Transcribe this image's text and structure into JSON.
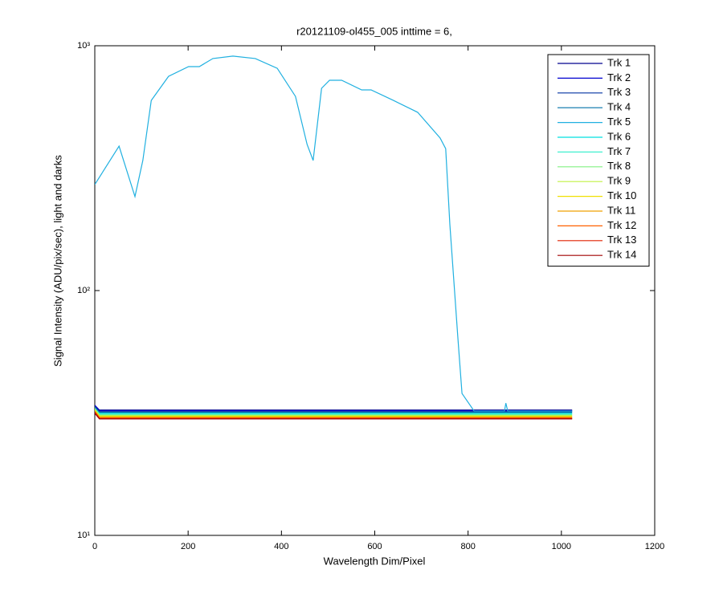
{
  "chart_data": {
    "type": "line",
    "title": "r20121109-ol455_005 inttime = 6,",
    "xlabel": "Wavelength Dim/Pixel",
    "ylabel": "Signal Intensity (ADU/pix/sec), light and darks",
    "xlim": [
      0,
      1200
    ],
    "xticks": [
      0,
      200,
      400,
      600,
      800,
      1000,
      1200
    ],
    "ylim": [
      10,
      1000
    ],
    "yscale": "log",
    "yticks": [
      {
        "value": 10,
        "label": "10¹"
      },
      {
        "value": 100,
        "label": "10²"
      },
      {
        "value": 1000,
        "label": "10³"
      }
    ],
    "legend": "upper right",
    "series": [
      {
        "name": "Trk 1",
        "color": "#00008f",
        "x": [
          0,
          10,
          1023
        ],
        "values": [
          34,
          32.5,
          32.5
        ]
      },
      {
        "name": "Trk 2",
        "color": "#0000cf",
        "x": [
          0,
          10,
          1023
        ],
        "values": [
          34,
          32.3,
          32.3
        ]
      },
      {
        "name": "Trk 3",
        "color": "#0030a0",
        "x": [
          0,
          10,
          1023
        ],
        "values": [
          33.5,
          32.0,
          32.0
        ]
      },
      {
        "name": "Trk 4",
        "color": "#0070a8",
        "x": [
          0,
          10,
          1023
        ],
        "values": [
          33.5,
          31.8,
          31.8
        ]
      },
      {
        "name": "Trk 5",
        "color": "#20b0e0",
        "x": [
          0,
          52,
          86,
          103,
          121,
          158,
          201,
          224,
          253,
          296,
          344,
          391,
          430,
          455,
          468,
          486,
          503,
          529,
          572,
          592,
          640,
          692,
          740,
          752,
          761,
          778,
          787,
          813,
          878,
          881,
          885,
          1023
        ],
        "values": [
          271,
          389,
          242,
          340,
          598,
          750,
          822,
          822,
          887,
          907,
          887,
          809,
          621,
          395,
          340,
          670,
          723,
          723,
          660,
          660,
          598,
          535,
          420,
          380,
          186,
          64.6,
          38,
          32.2,
          32.2,
          34.7,
          32.2,
          32.2
        ]
      },
      {
        "name": "Trk 6",
        "color": "#00e0e0",
        "x": [
          0,
          10,
          1023
        ],
        "values": [
          33,
          31.5,
          31.5
        ]
      },
      {
        "name": "Trk 7",
        "color": "#40f0d0",
        "x": [
          0,
          10,
          1023
        ],
        "values": [
          33,
          31.3,
          31.3
        ]
      },
      {
        "name": "Trk 8",
        "color": "#80f080",
        "x": [
          0,
          10,
          1023
        ],
        "values": [
          33,
          31.0,
          31.0
        ]
      },
      {
        "name": "Trk 9",
        "color": "#c0f040",
        "x": [
          0,
          10,
          1023
        ],
        "values": [
          32.5,
          30.8,
          30.8
        ]
      },
      {
        "name": "Trk 10",
        "color": "#f0e000",
        "x": [
          0,
          10,
          1023
        ],
        "values": [
          32.5,
          30.6,
          30.6
        ]
      },
      {
        "name": "Trk 11",
        "color": "#f0a000",
        "x": [
          0,
          10,
          1023
        ],
        "values": [
          32,
          30.4,
          30.4
        ]
      },
      {
        "name": "Trk 12",
        "color": "#ff6000",
        "x": [
          0,
          10,
          1023
        ],
        "values": [
          32,
          30.2,
          30.2
        ]
      },
      {
        "name": "Trk 13",
        "color": "#e02000",
        "x": [
          0,
          10,
          1023
        ],
        "values": [
          32,
          30.0,
          30.0
        ]
      },
      {
        "name": "Trk 14",
        "color": "#a00000",
        "x": [
          0,
          10,
          1023
        ],
        "values": [
          31.5,
          29.9,
          29.9
        ]
      }
    ]
  }
}
